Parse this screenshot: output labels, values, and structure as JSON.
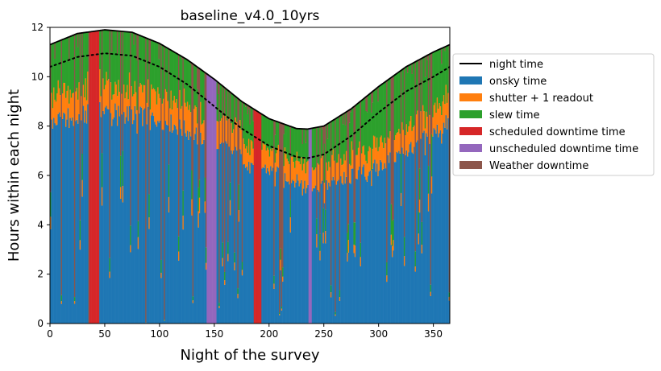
{
  "chart_data": {
    "type": "area",
    "title": "baseline_v4.0_10yrs",
    "xlabel": "Night of the survey",
    "ylabel": "Hours within each night",
    "xlim": [
      0,
      365
    ],
    "ylim": [
      0,
      12
    ],
    "xticks": [
      0,
      50,
      100,
      150,
      200,
      250,
      300,
      350
    ],
    "yticks": [
      0,
      2,
      4,
      6,
      8,
      10,
      12
    ],
    "grid": false,
    "legend_position": "outside-right",
    "colors": {
      "night": "#000000",
      "onsky": "#1f77b4",
      "shutter": "#ff7f0e",
      "slew": "#2ca02c",
      "scheduled": "#d62728",
      "unscheduled": "#9467bd",
      "weather": "#8c564b"
    },
    "night_time": {
      "description": "Smooth seasonal curve, max near night 50, min near night 235",
      "x": [
        0,
        25,
        50,
        75,
        100,
        125,
        150,
        175,
        200,
        225,
        235,
        250,
        275,
        300,
        325,
        350,
        365
      ],
      "y": [
        11.3,
        11.75,
        11.9,
        11.8,
        11.35,
        10.7,
        9.9,
        9.0,
        8.3,
        7.9,
        7.88,
        8.0,
        8.7,
        9.6,
        10.4,
        11.0,
        11.3
      ]
    },
    "night_time_dotted": {
      "x": [
        0,
        25,
        50,
        75,
        100,
        125,
        150,
        175,
        200,
        225,
        235,
        250,
        275,
        300,
        325,
        350,
        365
      ],
      "y": [
        10.4,
        10.8,
        10.95,
        10.85,
        10.4,
        9.7,
        8.8,
        7.9,
        7.2,
        6.75,
        6.7,
        6.85,
        7.6,
        8.55,
        9.4,
        10.0,
        10.4
      ]
    },
    "series_profile": {
      "x": [
        0,
        50,
        100,
        150,
        200,
        235,
        250,
        300,
        350,
        365
      ],
      "onsky": [
        8.2,
        8.6,
        8.3,
        7.3,
        6.2,
        5.6,
        5.6,
        6.4,
        7.7,
        8.2
      ],
      "shutter": [
        1.1,
        1.1,
        1.1,
        1.0,
        0.9,
        0.9,
        0.9,
        0.9,
        1.0,
        1.1
      ],
      "slew": [
        2.0,
        2.2,
        1.9,
        1.6,
        1.2,
        1.4,
        1.5,
        2.3,
        2.3,
        2.0
      ]
    },
    "scheduled_downtime_nights": [
      [
        36,
        44
      ],
      [
        186,
        192
      ]
    ],
    "unscheduled_downtime_nights": [
      [
        143,
        151
      ],
      [
        236,
        238
      ]
    ],
    "legend": [
      {
        "key": "night",
        "label": "night time",
        "style": "line"
      },
      {
        "key": "onsky",
        "label": "onsky time",
        "style": "patch"
      },
      {
        "key": "shutter",
        "label": "shutter + 1 readout",
        "style": "patch"
      },
      {
        "key": "slew",
        "label": "slew time",
        "style": "patch"
      },
      {
        "key": "scheduled",
        "label": "scheduled downtime time",
        "style": "patch"
      },
      {
        "key": "unscheduled",
        "label": "unscheduled downtime time",
        "style": "patch"
      },
      {
        "key": "weather",
        "label": "Weather downtime",
        "style": "patch"
      }
    ]
  }
}
